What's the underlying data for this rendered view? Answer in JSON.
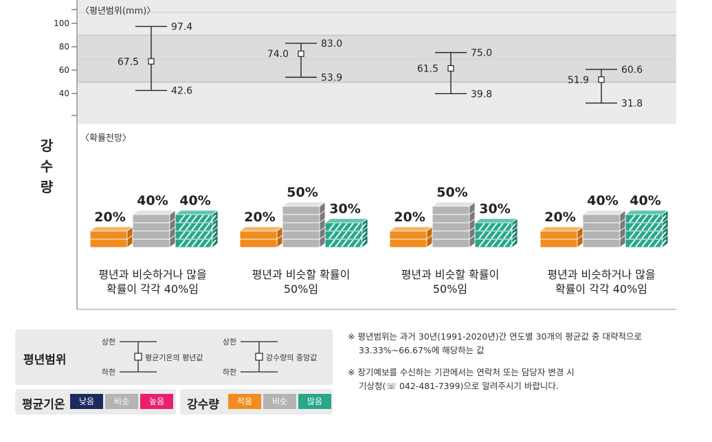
{
  "side_label": [
    "강",
    "수",
    "량"
  ],
  "chart_data": {
    "type": "range",
    "title": "〈평년범위(mm)〉",
    "yticks": [
      100,
      80,
      60,
      40
    ],
    "ylim": [
      20,
      113
    ],
    "band": [
      50,
      90
    ],
    "series": [
      {
        "upper": 97.4,
        "mean": 67.5,
        "lower": 42.6,
        "upper_label": "97.4",
        "mean_label": "67.5",
        "lower_label": "42.6"
      },
      {
        "upper": 83.0,
        "mean": 74.0,
        "lower": 53.9,
        "upper_label": "83.0",
        "mean_label": "74.0",
        "lower_label": "53.9"
      },
      {
        "upper": 75.0,
        "mean": 61.5,
        "lower": 39.8,
        "upper_label": "75.0",
        "mean_label": "61.5",
        "lower_label": "39.8"
      },
      {
        "upper": 60.6,
        "mean": 51.9,
        "lower": 31.8,
        "upper_label": "60.6",
        "mean_label": "51.9",
        "lower_label": "31.8"
      }
    ]
  },
  "probability": {
    "title": "〈확률전망〉",
    "periods": [
      {
        "low": 20,
        "normal": 40,
        "high": 40,
        "low_label": "20%",
        "normal_label": "40%",
        "high_label": "40%",
        "caption1": "평년과 비슷하거나 많을",
        "caption2": "확률이 각각 40%임"
      },
      {
        "low": 20,
        "normal": 50,
        "high": 30,
        "low_label": "20%",
        "normal_label": "50%",
        "high_label": "30%",
        "caption1": "평년과 비슷할 확률이",
        "caption2": "50%임"
      },
      {
        "low": 20,
        "normal": 50,
        "high": 30,
        "low_label": "20%",
        "normal_label": "50%",
        "high_label": "30%",
        "caption1": "평년과 비슷할 확률이",
        "caption2": "50%임"
      },
      {
        "low": 20,
        "normal": 40,
        "high": 40,
        "low_label": "20%",
        "normal_label": "40%",
        "high_label": "40%",
        "caption1": "평년과 비슷하거나 많을",
        "caption2": "확률이 각각 40%임"
      }
    ]
  },
  "legend": {
    "range_title": "평년범위",
    "upper": "상한",
    "lower": "하한",
    "temp_mean": "평균기온의 평년값",
    "precip_median": "강수량의 중앙값",
    "temp_title": "평균기온",
    "temp_pills": [
      "낮음",
      "비슷",
      "높음"
    ],
    "precip_title": "강수량",
    "precip_pills": [
      "적음",
      "비슷",
      "많음"
    ]
  },
  "colors": {
    "low": "#f28c1e",
    "normal": "#b4b4b4",
    "high": "#2aa68a",
    "temp_low": "#1e2a5e",
    "temp_high": "#e8206f",
    "precip_low": "#f28c1e",
    "precip_high": "#2aa68a"
  },
  "notes": {
    "note1_line1": "※  평년범위는 과거 30년(1991-2020년)간 연도별 30개의 평균값 중 대략적으로",
    "note1_line2": "33.33%~66.67%에 해당하는 값",
    "note2_line1": "※  장기예보를 수신하는 기관에서는 연락처 또는 담당자 변경 시",
    "note2_line2": "기상청(☏ 042-481-7399)으로 알려주시기 바랍니다."
  }
}
